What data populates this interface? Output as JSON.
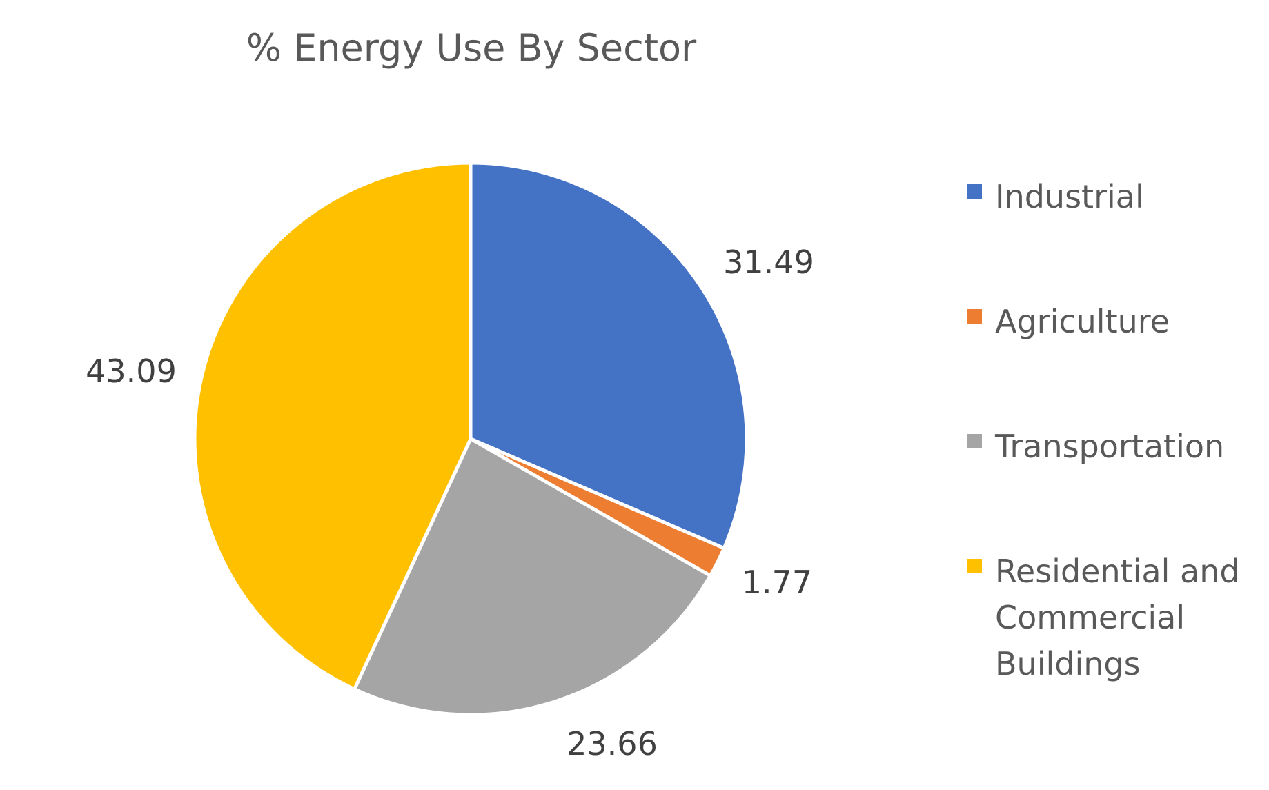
{
  "chart_data": {
    "type": "pie",
    "title": "% Energy Use By Sector",
    "categories": [
      "Industrial",
      "Agriculture",
      "Transportation",
      "Residential and Commercial Buildings"
    ],
    "values": [
      31.49,
      1.77,
      23.66,
      43.09
    ],
    "data_labels": [
      "31.49",
      "1.77",
      "23.66",
      "43.09"
    ],
    "colors": [
      "#4472C4",
      "#ED7D31",
      "#A5A5A5",
      "#FFC000"
    ],
    "legend": {
      "placement": "right",
      "entries": [
        {
          "label_lines": [
            "Industrial"
          ]
        },
        {
          "label_lines": [
            "Agriculture"
          ]
        },
        {
          "label_lines": [
            "Transportation"
          ]
        },
        {
          "label_lines": [
            "Residential and",
            "Commercial",
            "Buildings"
          ]
        }
      ]
    },
    "start_angle": "12 o'clock",
    "direction": "clockwise"
  }
}
